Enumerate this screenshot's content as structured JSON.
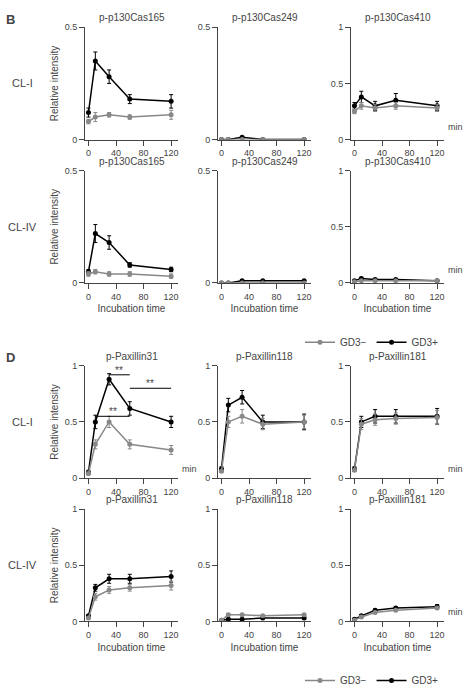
{
  "chart_data": [
    {
      "type": "line",
      "title": "p-p130Cas165",
      "ylabel": "Relative intensity",
      "x": [
        0,
        10,
        30,
        60,
        120
      ],
      "xlim": [
        -5,
        130
      ],
      "xticks": [
        0,
        40,
        80,
        120
      ],
      "ylim": [
        0,
        0.5
      ],
      "yticks": [
        0,
        0.5
      ],
      "grid": false,
      "series": [
        {
          "name": "GD3+",
          "color": "#000000",
          "marker": "circle",
          "line_style": "solid",
          "values": [
            0.12,
            0.35,
            0.28,
            0.18,
            0.17
          ],
          "errors": [
            0.02,
            0.04,
            0.03,
            0.02,
            0.03
          ]
        },
        {
          "name": "GD3−",
          "color": "#888888",
          "marker": "circle",
          "line_style": "solid",
          "values": [
            0.08,
            0.1,
            0.11,
            0.1,
            0.11
          ],
          "errors": [
            0.01,
            0.02,
            0.01,
            0.01,
            0.02
          ]
        }
      ],
      "annotations": [
        {
          "text": "B"
        },
        {
          "text": "CL-I"
        }
      ]
    },
    {
      "type": "line",
      "title": "p-p130Cas249",
      "x": [
        0,
        10,
        30,
        60,
        120
      ],
      "xlim": [
        -5,
        130
      ],
      "xticks": [
        0,
        40,
        80,
        120
      ],
      "ylim": [
        0,
        0.5
      ],
      "yticks": [
        0,
        0.5
      ],
      "grid": false,
      "series": [
        {
          "name": "GD3+",
          "color": "#000000",
          "marker": "circle",
          "line_style": "solid",
          "values": [
            0.0,
            0.0,
            0.01,
            0.0,
            0.0
          ],
          "errors": [
            0.0,
            0.0,
            0.0,
            0.0,
            0.0
          ]
        },
        {
          "name": "GD3−",
          "color": "#888888",
          "marker": "circle",
          "line_style": "solid",
          "values": [
            0.0,
            0.0,
            0.0,
            0.0,
            0.0
          ],
          "errors": [
            0.0,
            0.0,
            0.0,
            0.0,
            0.0
          ]
        }
      ]
    },
    {
      "type": "line",
      "title": "p-p130Cas410",
      "x": [
        0,
        10,
        30,
        60,
        120
      ],
      "xlim": [
        -5,
        130
      ],
      "xticks": [
        0,
        40,
        80,
        120
      ],
      "ylim": [
        0,
        1
      ],
      "yticks": [
        0,
        0.5,
        1
      ],
      "grid": false,
      "series": [
        {
          "name": "GD3+",
          "color": "#000000",
          "marker": "circle",
          "line_style": "solid",
          "values": [
            0.3,
            0.38,
            0.3,
            0.35,
            0.3
          ],
          "errors": [
            0.03,
            0.05,
            0.04,
            0.06,
            0.04
          ]
        },
        {
          "name": "GD3−",
          "color": "#888888",
          "marker": "circle",
          "line_style": "solid",
          "values": [
            0.25,
            0.3,
            0.28,
            0.3,
            0.28
          ],
          "errors": [
            0.02,
            0.03,
            0.03,
            0.03,
            0.03
          ]
        }
      ],
      "annotations": [
        {
          "text": "min",
          "x": 133,
          "y": 0.05
        }
      ]
    },
    {
      "type": "line",
      "title": "p-p130Cas165",
      "xlabel": "Incubation time",
      "ylabel": "Relative intensity",
      "x": [
        0,
        10,
        30,
        60,
        120
      ],
      "xlim": [
        -5,
        130
      ],
      "xticks": [
        0,
        40,
        80,
        120
      ],
      "ylim": [
        0,
        0.5
      ],
      "yticks": [
        0,
        0.5
      ],
      "grid": false,
      "series": [
        {
          "name": "GD3+",
          "color": "#000000",
          "marker": "circle",
          "line_style": "solid",
          "values": [
            0.05,
            0.22,
            0.18,
            0.08,
            0.06
          ],
          "errors": [
            0.01,
            0.04,
            0.03,
            0.01,
            0.01
          ]
        },
        {
          "name": "GD3−",
          "color": "#888888",
          "marker": "circle",
          "line_style": "solid",
          "values": [
            0.04,
            0.05,
            0.04,
            0.04,
            0.03
          ],
          "errors": [
            0.01,
            0.01,
            0.01,
            0.01,
            0.01
          ]
        }
      ],
      "annotations": [
        {
          "text": "CL-IV"
        }
      ]
    },
    {
      "type": "line",
      "title": "p-p130Cas249",
      "xlabel": "Incubation time",
      "x": [
        0,
        10,
        30,
        60,
        120
      ],
      "xlim": [
        -5,
        130
      ],
      "xticks": [
        0,
        40,
        80,
        120
      ],
      "ylim": [
        0,
        0.5
      ],
      "yticks": [
        0,
        0.5
      ],
      "grid": false,
      "series": [
        {
          "name": "GD3+",
          "color": "#000000",
          "marker": "circle",
          "line_style": "solid",
          "values": [
            0.0,
            0.0,
            0.01,
            0.01,
            0.01
          ],
          "errors": [
            0.0,
            0.0,
            0.0,
            0.0,
            0.0
          ]
        },
        {
          "name": "GD3−",
          "color": "#888888",
          "marker": "circle",
          "line_style": "solid",
          "values": [
            0.0,
            0.0,
            0.0,
            0.0,
            0.0
          ],
          "errors": [
            0.0,
            0.0,
            0.0,
            0.0,
            0.0
          ]
        }
      ]
    },
    {
      "type": "line",
      "title": "p-p130Cas410",
      "xlabel": "Incubation time",
      "x": [
        0,
        10,
        30,
        60,
        120
      ],
      "xlim": [
        -5,
        130
      ],
      "xticks": [
        0,
        40,
        80,
        120
      ],
      "ylim": [
        0,
        1
      ],
      "yticks": [
        0,
        0.5,
        1
      ],
      "grid": false,
      "legend": "lower right",
      "series": [
        {
          "name": "GD3+",
          "color": "#000000",
          "marker": "circle",
          "line_style": "solid",
          "values": [
            0.02,
            0.04,
            0.03,
            0.03,
            0.02
          ],
          "errors": [
            0.0,
            0.01,
            0.01,
            0.01,
            0.0
          ]
        },
        {
          "name": "GD3−",
          "color": "#888888",
          "marker": "circle",
          "line_style": "solid",
          "values": [
            0.01,
            0.02,
            0.02,
            0.02,
            0.02
          ],
          "errors": [
            0.0,
            0.0,
            0.0,
            0.0,
            0.0
          ]
        }
      ],
      "annotations": [
        {
          "text": "min",
          "x": 133,
          "y": 0.05
        }
      ]
    },
    {
      "type": "line",
      "title": "p-Paxillin31",
      "ylabel": "Relative intensity",
      "x": [
        0,
        10,
        30,
        60,
        120
      ],
      "xlim": [
        -5,
        130
      ],
      "xticks": [
        0,
        40,
        80,
        120
      ],
      "ylim": [
        0,
        1
      ],
      "yticks": [
        0,
        0.5,
        1
      ],
      "grid": false,
      "series": [
        {
          "name": "GD3+",
          "color": "#000000",
          "marker": "circle",
          "line_style": "solid",
          "values": [
            0.05,
            0.5,
            0.88,
            0.62,
            0.5
          ],
          "errors": [
            0.02,
            0.06,
            0.05,
            0.06,
            0.05
          ]
        },
        {
          "name": "GD3−",
          "color": "#888888",
          "marker": "circle",
          "line_style": "solid",
          "values": [
            0.04,
            0.3,
            0.5,
            0.3,
            0.25
          ],
          "errors": [
            0.01,
            0.04,
            0.05,
            0.04,
            0.04
          ]
        }
      ],
      "annotations": [
        {
          "text": "D"
        },
        {
          "text": "CL-I"
        },
        {
          "text": "min",
          "x": 133,
          "y": 0.02
        },
        {
          "text": "**",
          "x0": 30,
          "x1": 60,
          "y": 0.92
        },
        {
          "text": "**",
          "x0": 60,
          "x1": 120,
          "y": 0.8
        },
        {
          "text": "**",
          "x0": 10,
          "x1": 60,
          "y": 0.55
        }
      ]
    },
    {
      "type": "line",
      "title": "p-Paxillin118",
      "x": [
        0,
        10,
        30,
        60,
        120
      ],
      "xlim": [
        -5,
        130
      ],
      "xticks": [
        0,
        40,
        80,
        120
      ],
      "ylim": [
        0,
        1
      ],
      "yticks": [
        0,
        0.5,
        1
      ],
      "grid": false,
      "series": [
        {
          "name": "GD3+",
          "color": "#000000",
          "marker": "circle",
          "line_style": "solid",
          "values": [
            0.08,
            0.65,
            0.72,
            0.5,
            0.5
          ],
          "errors": [
            0.02,
            0.06,
            0.06,
            0.06,
            0.07
          ]
        },
        {
          "name": "GD3−",
          "color": "#888888",
          "marker": "circle",
          "line_style": "solid",
          "values": [
            0.06,
            0.5,
            0.55,
            0.48,
            0.5
          ],
          "errors": [
            0.01,
            0.05,
            0.06,
            0.05,
            0.06
          ]
        }
      ]
    },
    {
      "type": "line",
      "title": "p-Paxillin181",
      "x": [
        0,
        10,
        30,
        60,
        120
      ],
      "xlim": [
        -5,
        130
      ],
      "xticks": [
        0,
        40,
        80,
        120
      ],
      "ylim": [
        0,
        1
      ],
      "yticks": [
        0,
        0.5,
        1
      ],
      "grid": false,
      "series": [
        {
          "name": "GD3+",
          "color": "#000000",
          "marker": "circle",
          "line_style": "solid",
          "values": [
            0.08,
            0.5,
            0.55,
            0.55,
            0.55
          ],
          "errors": [
            0.02,
            0.05,
            0.06,
            0.06,
            0.07
          ]
        },
        {
          "name": "GD3−",
          "color": "#888888",
          "marker": "circle",
          "line_style": "solid",
          "values": [
            0.07,
            0.48,
            0.52,
            0.53,
            0.54
          ],
          "errors": [
            0.01,
            0.05,
            0.05,
            0.05,
            0.06
          ]
        }
      ],
      "annotations": [
        {
          "text": "min",
          "x": 133,
          "y": 0.02
        }
      ]
    },
    {
      "type": "line",
      "title": "p-Paxillin31",
      "xlabel": "Incubation time",
      "ylabel": "Relative intensity",
      "x": [
        0,
        10,
        30,
        60,
        120
      ],
      "xlim": [
        -5,
        130
      ],
      "xticks": [
        0,
        40,
        80,
        120
      ],
      "ylim": [
        0,
        1
      ],
      "yticks": [
        0,
        0.5,
        1
      ],
      "grid": false,
      "series": [
        {
          "name": "GD3+",
          "color": "#000000",
          "marker": "circle",
          "line_style": "solid",
          "values": [
            0.05,
            0.3,
            0.38,
            0.38,
            0.4
          ],
          "errors": [
            0.01,
            0.03,
            0.04,
            0.04,
            0.05
          ]
        },
        {
          "name": "GD3−",
          "color": "#888888",
          "marker": "circle",
          "line_style": "solid",
          "values": [
            0.03,
            0.22,
            0.28,
            0.3,
            0.32
          ],
          "errors": [
            0.01,
            0.03,
            0.03,
            0.03,
            0.04
          ]
        }
      ],
      "annotations": [
        {
          "text": "CL-IV"
        }
      ]
    },
    {
      "type": "line",
      "title": "p-Paxillin118",
      "xlabel": "Incubation time",
      "x": [
        0,
        10,
        30,
        60,
        120
      ],
      "xlim": [
        -5,
        130
      ],
      "xticks": [
        0,
        40,
        80,
        120
      ],
      "ylim": [
        0,
        1
      ],
      "yticks": [
        0,
        0.5,
        1
      ],
      "grid": false,
      "series": [
        {
          "name": "GD3+",
          "color": "#000000",
          "marker": "circle",
          "line_style": "solid",
          "values": [
            0.01,
            0.02,
            0.02,
            0.03,
            0.03
          ],
          "errors": [
            0.0,
            0.0,
            0.0,
            0.0,
            0.01
          ]
        },
        {
          "name": "GD3−",
          "color": "#888888",
          "marker": "circle",
          "line_style": "solid",
          "values": [
            0.01,
            0.06,
            0.06,
            0.05,
            0.06
          ],
          "errors": [
            0.0,
            0.01,
            0.01,
            0.01,
            0.01
          ]
        }
      ]
    },
    {
      "type": "line",
      "title": "p-Paxillin181",
      "xlabel": "Incubation time",
      "x": [
        0,
        10,
        30,
        60,
        120
      ],
      "xlim": [
        -5,
        130
      ],
      "xticks": [
        0,
        40,
        80,
        120
      ],
      "ylim": [
        0,
        1
      ],
      "yticks": [
        0,
        0.5,
        1
      ],
      "grid": false,
      "legend": "lower right",
      "series": [
        {
          "name": "GD3+",
          "color": "#000000",
          "marker": "circle",
          "line_style": "solid",
          "values": [
            0.02,
            0.05,
            0.1,
            0.12,
            0.13
          ],
          "errors": [
            0.0,
            0.01,
            0.01,
            0.01,
            0.02
          ]
        },
        {
          "name": "GD3−",
          "color": "#888888",
          "marker": "circle",
          "line_style": "solid",
          "values": [
            0.01,
            0.04,
            0.08,
            0.1,
            0.12
          ],
          "errors": [
            0.0,
            0.01,
            0.01,
            0.01,
            0.01
          ]
        }
      ],
      "annotations": [
        {
          "text": "min",
          "x": 133,
          "y": 0.02
        }
      ]
    }
  ]
}
